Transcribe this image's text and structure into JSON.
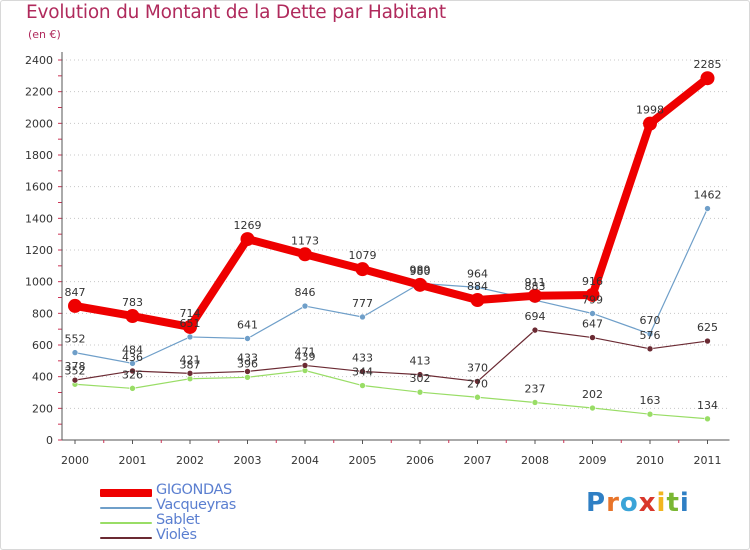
{
  "title": "Evolution du Montant de la Dette par Habitant",
  "unit_label": "(en €)",
  "logo": {
    "text": "Proxiti",
    "letter_colors": [
      "#2f7fc4",
      "#e8742a",
      "#3aa4d8",
      "#d9372b",
      "#f1b520",
      "#7ab733",
      "#2f7fc4"
    ]
  },
  "chart_data": {
    "type": "line",
    "title": "Evolution du Montant de la Dette par Habitant",
    "ylabel": "(en €)",
    "xlabel": "",
    "x": [
      "2000",
      "2001",
      "2002",
      "2003",
      "2004",
      "2005",
      "2006",
      "2007",
      "2008",
      "2009",
      "2010",
      "2011"
    ],
    "ylim": [
      0,
      2400
    ],
    "yticks": [
      0,
      200,
      400,
      600,
      800,
      1000,
      1200,
      1400,
      1600,
      1800,
      2000,
      2200,
      2400
    ],
    "grid": true,
    "legend_position": "bottom-left",
    "series": [
      {
        "name": "GIGONDAS",
        "color": "#ee0000",
        "values": [
          847,
          783,
          714,
          1269,
          1173,
          1079,
          980,
          884,
          911,
          916,
          1998,
          2285
        ],
        "labels": [
          "847",
          "783",
          "714",
          "1269",
          "1173",
          "1079",
          "980",
          "884",
          "911",
          "916",
          "1998",
          "2285"
        ]
      },
      {
        "name": "Vacqueyras",
        "color": "#6f9fc9",
        "values": [
          552,
          484,
          651,
          641,
          846,
          777,
          989,
          964,
          883,
          799,
          670,
          1462
        ],
        "labels": [
          "552",
          "484",
          "651",
          "641",
          "846",
          "777",
          "989",
          "964",
          "883",
          "799",
          "670",
          "1462"
        ]
      },
      {
        "name": "Sablet",
        "color": "#99dd66",
        "values": [
          352,
          326,
          387,
          396,
          439,
          344,
          302,
          270,
          237,
          202,
          163,
          134
        ],
        "labels": [
          "352",
          "326",
          "387",
          "396",
          "439",
          "344",
          "302",
          "270",
          "237",
          "202",
          "163",
          "134"
        ]
      },
      {
        "name": "Violès",
        "color": "#6b2a33",
        "values": [
          378,
          436,
          421,
          433,
          471,
          433,
          413,
          370,
          694,
          647,
          576,
          625
        ],
        "labels": [
          "378",
          "436",
          "421",
          "433",
          "471",
          "433",
          "413",
          "370",
          "694",
          "647",
          "576",
          "625"
        ]
      }
    ]
  }
}
